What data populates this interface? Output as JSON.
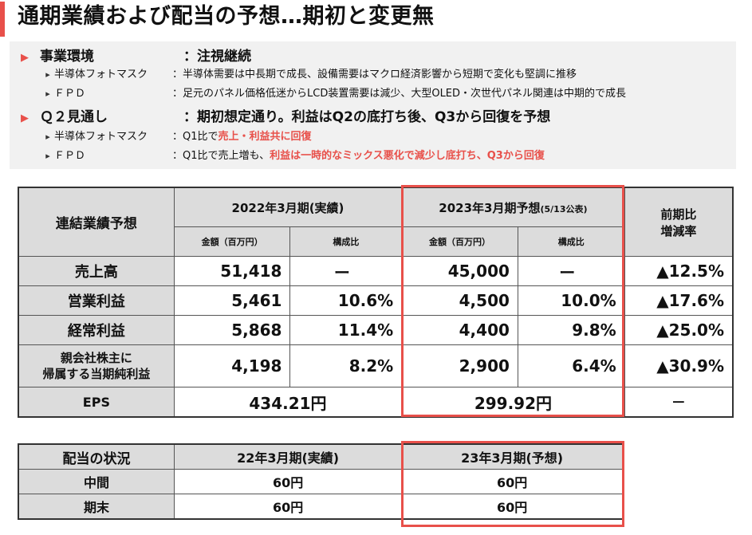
{
  "title": "通期業績および配当の予想…期初と変更無",
  "environment": {
    "heading_label": "事業環境",
    "heading_value": "：注視継続",
    "items": [
      {
        "label": "半導体フォトマスク",
        "text": "：半導体需要は中長期で成長、設備需要はマクロ経済影響から短期で変化も堅調に推移"
      },
      {
        "label": "ＦＰＤ",
        "text": "：足元のパネル価格低迷からLCD装置需要は減少、大型OLED・次世代パネル関連は中期的で成長"
      }
    ]
  },
  "q2": {
    "heading_label": "Ｑ２見通し",
    "heading_value": "：期初想定通り。利益はQ2の底打ち後、Q3から回復を予想",
    "items": [
      {
        "label": "半導体フォトマスク",
        "text_plain": "：Q1比で",
        "text_red": "売上・利益共に回復",
        "text_after": ""
      },
      {
        "label": "ＦＰＤ",
        "text_plain": "：Q1比で売上増も、",
        "text_red": "利益は一時的なミックス悪化で減少し底打ち、Q3から回復",
        "text_after": ""
      }
    ]
  },
  "performance": {
    "corner": "連結業績予想",
    "fy2022": "2022年3月期(実績)",
    "fy2023": "2023年3月期予想",
    "fy2023_note": "(5/13公表)",
    "yoy": "前期比\n増減率",
    "sub_amount": "金額（百万円）",
    "sub_ratio": "構成比",
    "rows": [
      {
        "label": "売上高",
        "a22": "51,418",
        "r22": "ー",
        "a23": "45,000",
        "r23": "ー",
        "yoy": "▲12.5%"
      },
      {
        "label": "営業利益",
        "a22": "5,461",
        "r22": "10.6%",
        "a23": "4,500",
        "r23": "10.0%",
        "yoy": "▲17.6%"
      },
      {
        "label": "経常利益",
        "a22": "5,868",
        "r22": "11.4%",
        "a23": "4,400",
        "r23": "9.8%",
        "yoy": "▲25.0%"
      },
      {
        "label": "親会社株主に\n帰属する当期純利益",
        "a22": "4,198",
        "r22": "8.2%",
        "a23": "2,900",
        "r23": "6.4%",
        "yoy": "▲30.9%"
      }
    ],
    "eps": {
      "label": "EPS",
      "v22": "434.21円",
      "v23": "299.92円",
      "yoy": "－"
    }
  },
  "dividend": {
    "corner": "配当の状況",
    "fy22": "22年3月期(実績)",
    "fy23": "23年3月期(予想)",
    "rows": [
      {
        "label": "中間",
        "v22": "60円",
        "v23": "60円"
      },
      {
        "label": "期末",
        "v22": "60円",
        "v23": "60円"
      }
    ]
  },
  "colors": {
    "accent": "#e8504a",
    "header_gray": "#dcdcdc",
    "panel_gray": "#f1f1f1"
  }
}
